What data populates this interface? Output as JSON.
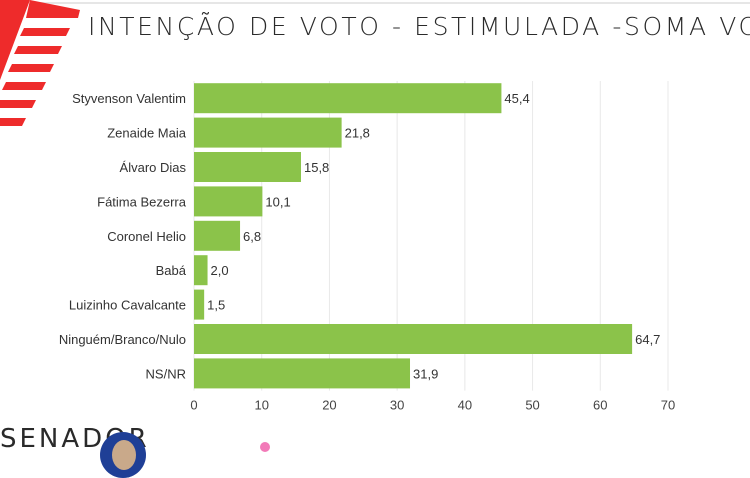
{
  "header": {
    "title": "INTENÇÃO DE VOTO - ESTIMULADA -SOMA VO"
  },
  "footer": {
    "section_label": "SENADOR"
  },
  "colors": {
    "bar": "#8bc34a",
    "logo": "#ee2b2b"
  },
  "chart_data": {
    "type": "bar",
    "orientation": "horizontal",
    "title": "INTENÇÃO DE VOTO - ESTIMULADA -SOMA VO",
    "categories": [
      "Styvenson Valentim",
      "Zenaide Maia",
      "Álvaro Dias",
      "Fátima Bezerra",
      "Coronel Helio",
      "Babá",
      "Luizinho Cavalcante",
      "Ninguém/Branco/Nulo",
      "NS/NR"
    ],
    "values": [
      45.4,
      21.8,
      15.8,
      10.1,
      6.8,
      2.0,
      1.5,
      64.7,
      31.9
    ],
    "value_labels": [
      "45,4",
      "21,8",
      "15,8",
      "10,1",
      "6,8",
      "2,0",
      "1,5",
      "64,7",
      "31,9"
    ],
    "xlim": [
      0,
      70
    ],
    "xticks": [
      "0",
      "10",
      "20",
      "30",
      "40",
      "50",
      "60",
      "70"
    ],
    "grid": true,
    "xlabel": "",
    "ylabel": ""
  }
}
